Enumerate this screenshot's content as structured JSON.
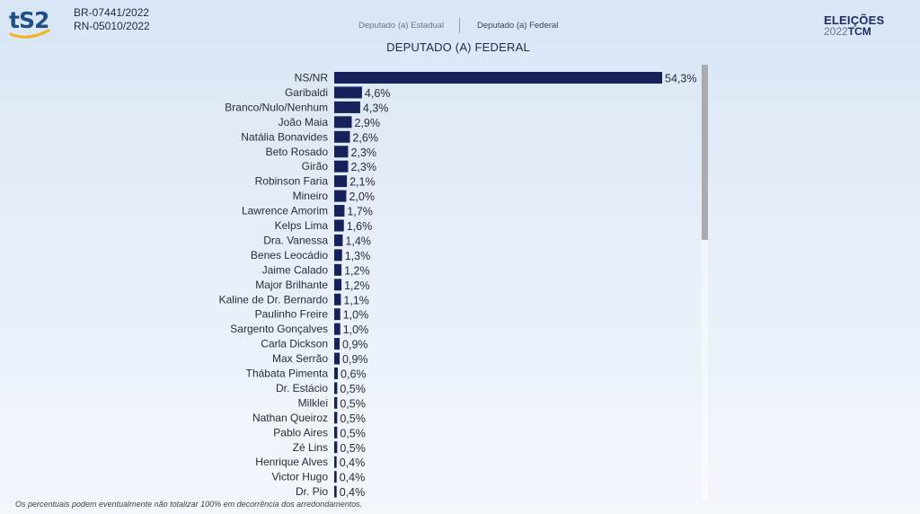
{
  "header": {
    "logo_text": "tS2",
    "registrations": [
      "BR-07441/2022",
      "RN-05010/2022"
    ],
    "tabs": [
      {
        "label": "Deputado (a) Estadual",
        "active": false
      },
      {
        "label": "Deputado (a) Federal",
        "active": true
      }
    ],
    "brand_top": "ELEIÇÕES",
    "brand_year": "2022",
    "brand_tcm": "TCM"
  },
  "colors": {
    "bar": "#17225a",
    "background": "#dde8f5",
    "accent": "#1f4f86"
  },
  "chart_data": {
    "type": "bar",
    "orientation": "horizontal",
    "title": "DEPUTADO (A) FEDERAL",
    "unit": "%",
    "categories": [
      "NS/NR",
      "Garibaldi",
      "Branco/Nulo/Nenhum",
      "João Maia",
      "Natália Bonavides",
      "Beto Rosado",
      "Girão",
      "Robinson Faria",
      "Mineiro",
      "Lawrence Amorim",
      "Kelps Lima",
      "Dra. Vanessa",
      "Benes Leocádio",
      "Jaime Calado",
      "Major Brilhante",
      "Kaline de Dr. Bernardo",
      "Paulinho Freire",
      "Sargento Gonçalves",
      "Carla Dickson",
      "Max Serrão",
      "Thábata Pimenta",
      "Dr. Estácio",
      "Milklei",
      "Nathan Queiroz",
      "Pablo Aires",
      "Zé Lins",
      "Henrique Alves",
      "Victor Hugo",
      "Dr. Pio"
    ],
    "values": [
      54.3,
      4.6,
      4.3,
      2.9,
      2.6,
      2.3,
      2.3,
      2.1,
      2.0,
      1.7,
      1.6,
      1.4,
      1.3,
      1.2,
      1.2,
      1.1,
      1.0,
      1.0,
      0.9,
      0.9,
      0.6,
      0.5,
      0.5,
      0.5,
      0.5,
      0.5,
      0.4,
      0.4,
      0.4
    ],
    "value_labels": [
      "54,3%",
      "4,6%",
      "4,3%",
      "2,9%",
      "2,6%",
      "2,3%",
      "2,3%",
      "2,1%",
      "2,0%",
      "1,7%",
      "1,6%",
      "1,4%",
      "1,3%",
      "1,2%",
      "1,2%",
      "1,1%",
      "1,0%",
      "1,0%",
      "0,9%",
      "0,9%",
      "0,6%",
      "0,5%",
      "0,5%",
      "0,5%",
      "0,5%",
      "0,5%",
      "0,4%",
      "0,4%",
      "0,4%"
    ],
    "xlim": [
      0,
      54.3
    ],
    "grid": false,
    "legend": "none"
  },
  "footnote": "Os percentuais podem eventualmente não totalizar 100% em decorrência dos arredondamentos."
}
